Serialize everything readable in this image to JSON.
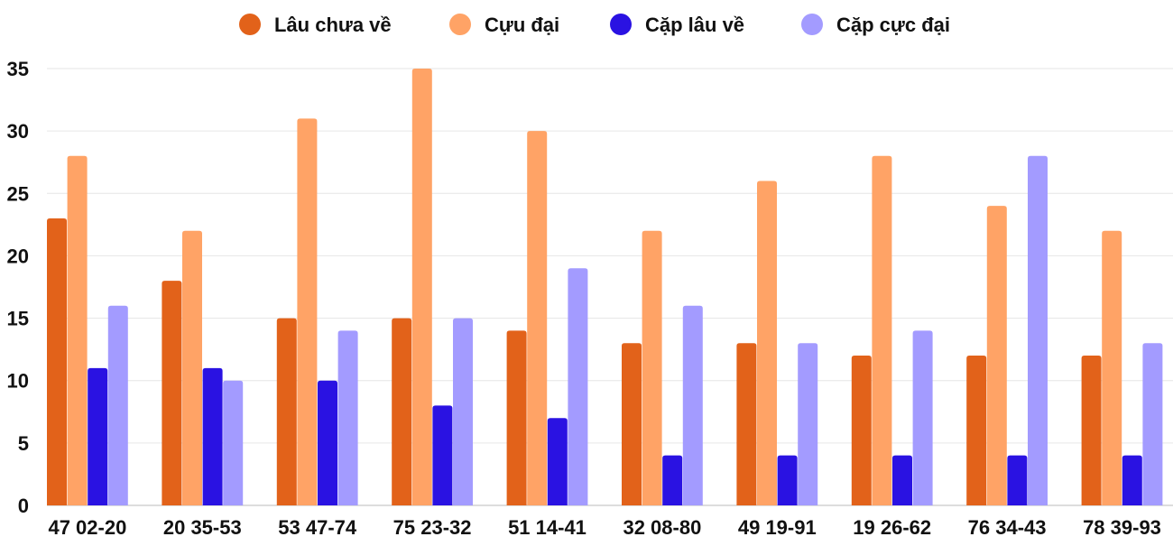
{
  "chart_data": {
    "type": "bar",
    "categories": [
      "47 02-20",
      "20 35-53",
      "53 47-74",
      "75 23-32",
      "51 14-41",
      "32 08-80",
      "49 19-91",
      "19 26-62",
      "76 34-43",
      "78 39-93"
    ],
    "series": [
      {
        "name": "Lâu chưa về",
        "color": "#e2621a",
        "values": [
          23,
          18,
          15,
          15,
          14,
          13,
          13,
          12,
          12,
          12
        ]
      },
      {
        "name": "Cựu đại",
        "color": "#ffa366",
        "values": [
          28,
          22,
          31,
          35,
          30,
          22,
          26,
          28,
          24,
          22
        ]
      },
      {
        "name": "Cặp lâu về",
        "color": "#2a12e2",
        "values": [
          11,
          11,
          10,
          8,
          7,
          4,
          4,
          4,
          4,
          4
        ]
      },
      {
        "name": "Cặp cực đại",
        "color": "#a39bff",
        "values": [
          16,
          10,
          14,
          15,
          19,
          16,
          13,
          14,
          28,
          13
        ]
      }
    ],
    "yticks": [
      "0",
      "5",
      "10",
      "15",
      "20",
      "25",
      "30",
      "35"
    ],
    "ylim": [
      0,
      35
    ],
    "grid": true,
    "legend": "top-center"
  }
}
